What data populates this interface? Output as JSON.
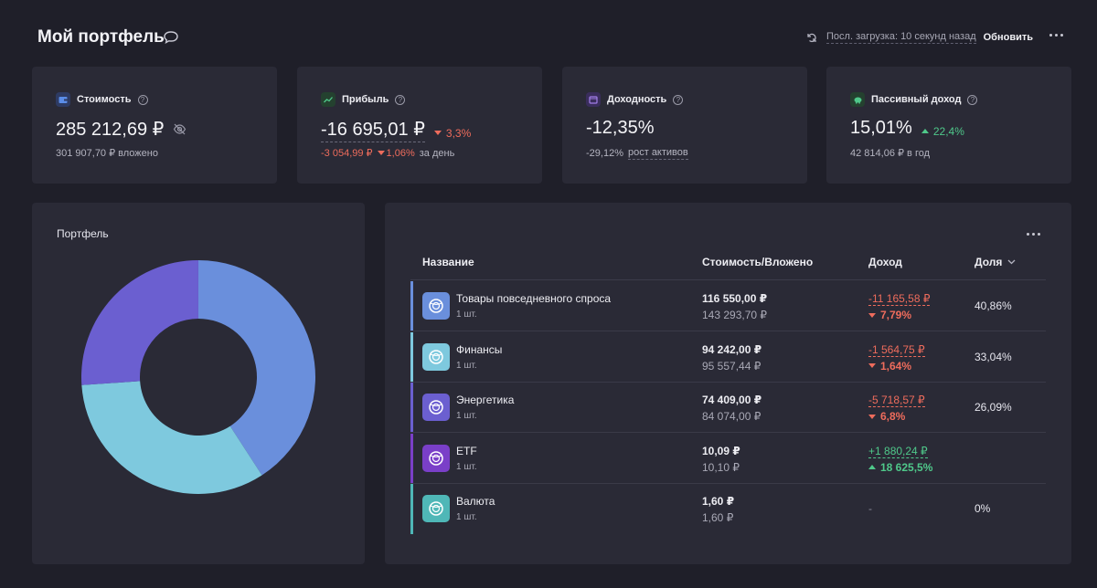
{
  "header": {
    "title": "Мой портфель",
    "last_load_label": "Посл. загрузка: 10 секунд назад",
    "refresh_label": "Обновить"
  },
  "cards": [
    {
      "label": "Стоимость",
      "value": "285 212,69 ₽",
      "sub_text": "301 907,70 ₽ вложено",
      "icon": "wallet-icon",
      "icon_color": "#3b6fd6"
    },
    {
      "label": "Прибыль",
      "value": "-16 695,01 ₽",
      "delta": "3,3%",
      "sub_amount": "-3 054,99 ₽",
      "sub_pct": "1,06%",
      "sub_suffix": "за день",
      "icon": "chart-line-icon",
      "icon_color": "#3aa56b"
    },
    {
      "label": "Доходность",
      "value": "-12,35%",
      "sub_value": "-29,12%",
      "sub_link": "рост активов",
      "icon": "calendar-icon",
      "icon_color": "#8a5ad6"
    },
    {
      "label": "Пассивный доход",
      "value": "15,01%",
      "delta": "22,4%",
      "sub_text": "42 814,06 ₽ в год",
      "icon": "piggy-bank-icon",
      "icon_color": "#3aa56b"
    }
  ],
  "portfolio_panel": {
    "title": "Портфель"
  },
  "chart_data": {
    "type": "pie",
    "donut": true,
    "labels": [
      "Товары повседневного спроса",
      "Финансы",
      "Энергетика",
      "ETF",
      "Валюта"
    ],
    "values": [
      40.86,
      33.04,
      26.09,
      0.0035,
      0.0006
    ],
    "colors": [
      "#6a8fdc",
      "#7ec9de",
      "#6b5fd0",
      "#7a3fc8",
      "#4fb7b7"
    ]
  },
  "table": {
    "headers": {
      "name": "Название",
      "cost": "Стоимость/Вложено",
      "income": "Доход",
      "share": "Доля"
    },
    "rows": [
      {
        "name": "Товары повседневного спроса",
        "qty": "1 шт.",
        "cost": "116 550,00 ₽",
        "invested": "143 293,70 ₽",
        "income": "-11 165,58 ₽",
        "income_pct": "7,79%",
        "direction": "down",
        "share": "40,86%",
        "accent": "#6a8fdc"
      },
      {
        "name": "Финансы",
        "qty": "1 шт.",
        "cost": "94 242,00 ₽",
        "invested": "95 557,44 ₽",
        "income": "-1 564,75 ₽",
        "income_pct": "1,64%",
        "direction": "down",
        "share": "33,04%",
        "accent": "#7ec9de"
      },
      {
        "name": "Энергетика",
        "qty": "1 шт.",
        "cost": "74 409,00 ₽",
        "invested": "84 074,00 ₽",
        "income": "-5 718,57 ₽",
        "income_pct": "6,8%",
        "direction": "down",
        "share": "26,09%",
        "accent": "#6b5fd0"
      },
      {
        "name": "ETF",
        "qty": "1 шт.",
        "cost": "10,09 ₽",
        "invested": "10,10 ₽",
        "income": "+1 880,24 ₽",
        "income_pct": "18 625,5%",
        "direction": "up",
        "share": "",
        "accent": "#7a3fc8"
      },
      {
        "name": "Валюта",
        "qty": "1 шт.",
        "cost": "1,60 ₽",
        "invested": "1,60 ₽",
        "income": "-",
        "income_pct": "",
        "direction": "none",
        "share": "0%",
        "accent": "#4fb7b7"
      }
    ]
  }
}
